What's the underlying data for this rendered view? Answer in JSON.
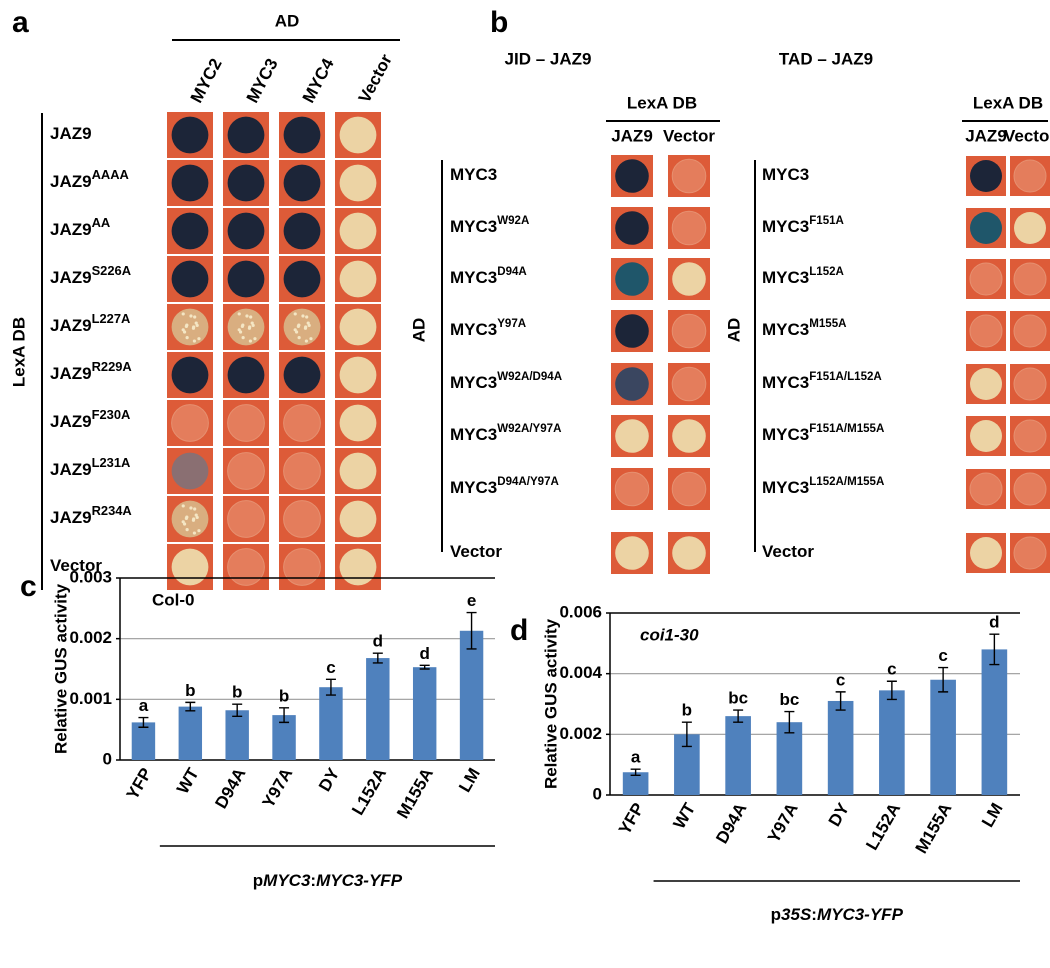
{
  "panel_a": {
    "panel_label": "a",
    "header": "AD",
    "side_label": "LexA DB",
    "columns": [
      "MYC2",
      "MYC3",
      "MYC4",
      "Vector"
    ],
    "rows": [
      {
        "label": {
          "base": "JAZ9"
        },
        "spots": [
          "blue",
          "blue",
          "blue",
          "pale"
        ]
      },
      {
        "label": {
          "base": "JAZ9",
          "sup": "AAAA"
        },
        "spots": [
          "blue",
          "blue",
          "blue",
          "pale"
        ]
      },
      {
        "label": {
          "base": "JAZ9",
          "sup": "AA"
        },
        "spots": [
          "blue",
          "blue",
          "blue",
          "pale"
        ]
      },
      {
        "label": {
          "base": "JAZ9",
          "sup": "S226A"
        },
        "spots": [
          "blue",
          "blue",
          "blue",
          "pale"
        ]
      },
      {
        "label": {
          "base": "JAZ9",
          "sup": "L227A"
        },
        "spots": [
          "speckled",
          "speckled",
          "speckled",
          "pale"
        ]
      },
      {
        "label": {
          "base": "JAZ9",
          "sup": "R229A"
        },
        "spots": [
          "blue",
          "blue",
          "blue",
          "pale"
        ]
      },
      {
        "label": {
          "base": "JAZ9",
          "sup": "F230A"
        },
        "spots": [
          "faint",
          "faint",
          "faint",
          "pale"
        ]
      },
      {
        "label": {
          "base": "JAZ9",
          "sup": "L231A"
        },
        "spots": [
          "gray",
          "faint",
          "faint",
          "pale"
        ]
      },
      {
        "label": {
          "base": "JAZ9",
          "sup": "R234A"
        },
        "spots": [
          "speckled",
          "faint",
          "faint",
          "pale"
        ]
      },
      {
        "label": {
          "base": "Vector"
        },
        "spots": [
          "pale",
          "faint",
          "faint",
          "pale"
        ]
      }
    ]
  },
  "panel_b": {
    "panel_label": "b",
    "groups": [
      {
        "title": "JID – JAZ9",
        "header": "LexA DB",
        "side_label": "AD",
        "columns": [
          "JAZ9",
          "Vector"
        ],
        "rows": [
          {
            "label": {
              "base": "MYC3"
            },
            "spots": [
              "blue",
              "faint"
            ]
          },
          {
            "label": {
              "base": "MYC3",
              "sup": "W92A"
            },
            "spots": [
              "blue",
              "faint"
            ]
          },
          {
            "label": {
              "base": "MYC3",
              "sup": "D94A"
            },
            "spots": [
              "teal",
              "pale"
            ]
          },
          {
            "label": {
              "base": "MYC3",
              "sup": "Y97A"
            },
            "spots": [
              "blue",
              "faint"
            ]
          },
          {
            "label": {
              "base": "MYC3",
              "sup": "W92A/D94A"
            },
            "spots": [
              "grayblue",
              "faint"
            ]
          },
          {
            "label": {
              "base": "MYC3",
              "sup": "W92A/Y97A"
            },
            "spots": [
              "pale",
              "pale"
            ]
          },
          {
            "label": {
              "base": "MYC3",
              "sup": "D94A/Y97A"
            },
            "spots": [
              "faint",
              "faint"
            ]
          },
          {
            "label": {
              "base": "Vector"
            },
            "spots": [
              "pale",
              "pale"
            ]
          }
        ]
      },
      {
        "title": "TAD – JAZ9",
        "header": "LexA DB",
        "side_label": "AD",
        "columns": [
          "JAZ9",
          "Vector"
        ],
        "rows": [
          {
            "label": {
              "base": "MYC3"
            },
            "spots": [
              "blue",
              "faint"
            ]
          },
          {
            "label": {
              "base": "MYC3",
              "sup": "F151A"
            },
            "spots": [
              "teal",
              "pale"
            ]
          },
          {
            "label": {
              "base": "MYC3",
              "sup": "L152A"
            },
            "spots": [
              "faint",
              "faint"
            ]
          },
          {
            "label": {
              "base": "MYC3",
              "sup": "M155A"
            },
            "spots": [
              "faint",
              "faint"
            ]
          },
          {
            "label": {
              "base": "MYC3",
              "sup": "F151A/L152A"
            },
            "spots": [
              "pale",
              "faint"
            ]
          },
          {
            "label": {
              "base": "MYC3",
              "sup": "F151A/M155A"
            },
            "spots": [
              "pale",
              "faint"
            ]
          },
          {
            "label": {
              "base": "MYC3",
              "sup": "L152A/M155A"
            },
            "spots": [
              "faint",
              "faint"
            ]
          },
          {
            "label": {
              "base": "Vector"
            },
            "spots": [
              "pale",
              "faint"
            ]
          }
        ]
      }
    ]
  },
  "chart_data": [
    {
      "type": "bar",
      "panel_label": "c",
      "inset_label": "Col-0",
      "inset_italic": false,
      "y_label": "Relative GUS activity",
      "categories": [
        "YFP",
        "WT",
        "D94A",
        "Y97A",
        "DY",
        "L152A",
        "M155A",
        "LM"
      ],
      "values": [
        0.00062,
        0.00088,
        0.00082,
        0.00074,
        0.0012,
        0.00168,
        0.00153,
        0.00213
      ],
      "errors": [
        8e-05,
        7e-05,
        0.0001,
        0.00012,
        0.00013,
        8e-05,
        3e-05,
        0.0003
      ],
      "significance_letters": [
        "a",
        "b",
        "b",
        "b",
        "c",
        "d",
        "d",
        "e"
      ],
      "color": "#4f81bd",
      "ylim": [
        0,
        0.003
      ],
      "yticks": [
        0,
        0.001,
        0.002,
        0.003
      ],
      "grid": true,
      "group_label": [
        {
          "text": "p",
          "italic": false
        },
        {
          "text": "MYC3",
          "italic": true
        },
        {
          "text": ":",
          "italic": false
        },
        {
          "text": "MYC3-YFP",
          "italic": true
        }
      ]
    },
    {
      "type": "bar",
      "panel_label": "d",
      "inset_label": "coi1-30",
      "inset_italic": true,
      "y_label": "Relative GUS activity",
      "categories": [
        "YFP",
        "WT",
        "D94A",
        "Y97A",
        "DY",
        "L152A",
        "M155A",
        "LM"
      ],
      "values": [
        0.00075,
        0.002,
        0.0026,
        0.0024,
        0.0031,
        0.00345,
        0.0038,
        0.0048
      ],
      "errors": [
        0.0001,
        0.0004,
        0.0002,
        0.00035,
        0.0003,
        0.0003,
        0.0004,
        0.0005
      ],
      "significance_letters": [
        "a",
        "b",
        "bc",
        "bc",
        "c",
        "c",
        "c",
        "d"
      ],
      "color": "#4f81bd",
      "ylim": [
        0,
        0.006
      ],
      "yticks": [
        0,
        0.002,
        0.004,
        0.006
      ],
      "grid": true,
      "group_label": [
        {
          "text": "p",
          "italic": false
        },
        {
          "text": "35S",
          "italic": true
        },
        {
          "text": ":",
          "italic": false
        },
        {
          "text": "MYC3-YFP",
          "italic": true
        }
      ]
    }
  ]
}
